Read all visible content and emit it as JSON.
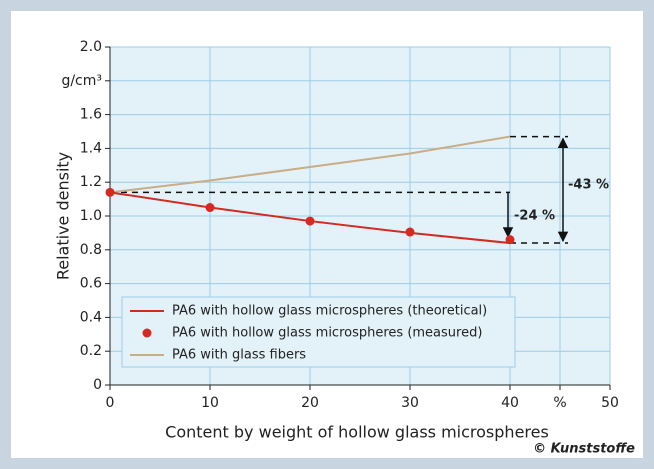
{
  "chart_data": {
    "type": "line",
    "x_label": "Content by weight of hollow glass microspheres",
    "y_label": "Relative density",
    "credit": "© Kunststoffe",
    "x": [
      0,
      10,
      20,
      30,
      40
    ],
    "series": [
      {
        "name": "PA6 with hollow glass microspheres (theoretical)",
        "color": "#d42a22",
        "style": "line",
        "values": [
          1.14,
          1.05,
          0.97,
          0.9,
          0.84
        ]
      },
      {
        "name": "PA6 with hollow glass microspheres (measured)",
        "color": "#d42a22",
        "style": "markers",
        "values": [
          1.14,
          1.05,
          0.97,
          0.905,
          0.86
        ]
      },
      {
        "name": "PA6 with glass fibers",
        "color": "#c9ad85",
        "style": "line",
        "values": [
          1.14,
          1.21,
          1.29,
          1.37,
          1.47
        ]
      }
    ],
    "annotations": [
      "-24 %",
      "-43 %"
    ],
    "xlim": [
      0,
      50
    ],
    "xticks": [
      0,
      10,
      20,
      30,
      40,
      {
        "value": 45,
        "label": "%"
      },
      50
    ],
    "ylim": [
      0,
      2
    ],
    "yticks": [
      0,
      0.2,
      0.4,
      0.6,
      0.8,
      {
        "value": 1,
        "label": "1.0"
      },
      1.2,
      1.4,
      1.6,
      {
        "value": 1.8,
        "label": "g/cm³"
      },
      {
        "value": 2,
        "label": "2.0"
      }
    ],
    "grid": true,
    "legend": "lower left"
  }
}
